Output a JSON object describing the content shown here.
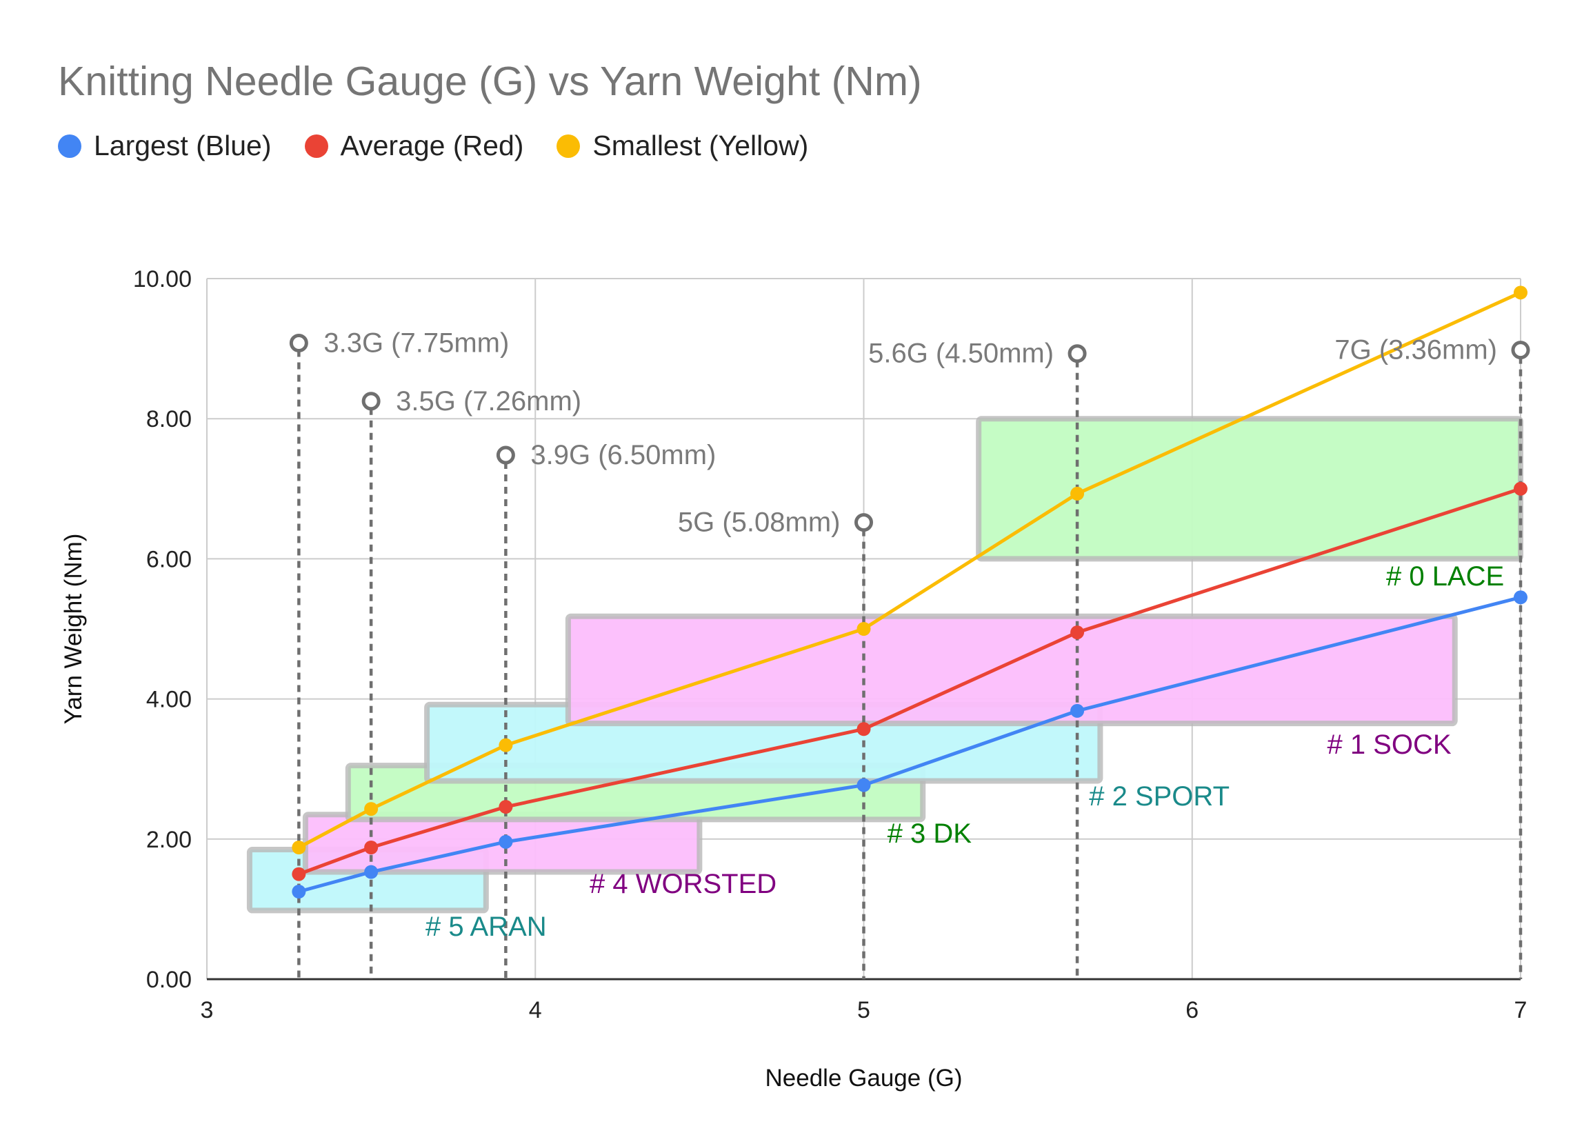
{
  "chart_data": {
    "type": "line",
    "title": "Knitting Needle Gauge (G) vs Yarn Weight (Nm)",
    "xlabel": "Needle Gauge (G)",
    "ylabel": "Yarn Weight (Nm)",
    "xlim": [
      3,
      7
    ],
    "ylim": [
      0,
      10
    ],
    "x_ticks": [
      "3",
      "4",
      "5",
      "6",
      "7"
    ],
    "y_ticks": [
      "0.00",
      "2.00",
      "4.00",
      "6.00",
      "8.00",
      "10.00"
    ],
    "grid": true,
    "legend_position": "top-left",
    "x": [
      3.28,
      3.5,
      3.91,
      5.0,
      5.65,
      7.0
    ],
    "series": [
      {
        "name": "Largest (Blue)",
        "color": "#4285f4",
        "values": [
          1.25,
          1.53,
          1.96,
          2.77,
          3.83,
          5.45
        ]
      },
      {
        "name": "Average (Red)",
        "color": "#ea4335",
        "values": [
          1.5,
          1.88,
          2.46,
          3.57,
          4.95,
          7.0
        ]
      },
      {
        "name": "Smallest (Yellow)",
        "color": "#fbbc04",
        "values": [
          1.88,
          2.43,
          3.34,
          5.0,
          6.93,
          9.8
        ]
      }
    ],
    "needle_markers": [
      {
        "x": 3.28,
        "y": 9.08,
        "label": "3.3G (7.75mm)",
        "side": "right"
      },
      {
        "x": 3.5,
        "y": 8.25,
        "label": "3.5G (7.26mm)",
        "side": "right"
      },
      {
        "x": 3.91,
        "y": 7.48,
        "label": "3.9G (6.50mm)",
        "side": "right"
      },
      {
        "x": 5.0,
        "y": 6.52,
        "label": "5G (5.08mm)",
        "side": "left"
      },
      {
        "x": 5.65,
        "y": 8.93,
        "label": "5.6G (4.50mm)",
        "side": "left"
      },
      {
        "x": 7.0,
        "y": 8.98,
        "label": "7G (3.36mm)",
        "side": "left"
      }
    ],
    "weight_bands": [
      {
        "label": "# 5 ARAN",
        "x0": 3.13,
        "x1": 3.85,
        "y0": 0.98,
        "y1": 1.85,
        "fill": "#bff8fb",
        "text_color": "#1a8a8a",
        "label_x": 3.85,
        "label_y": 0.62,
        "label_anchor": "middle"
      },
      {
        "label": "# 4 WORSTED",
        "x0": 3.3,
        "x1": 4.5,
        "y0": 1.53,
        "y1": 2.35,
        "fill": "#fcbefc",
        "text_color": "#800080",
        "label_x": 4.45,
        "label_y": 1.23,
        "label_anchor": "middle"
      },
      {
        "label": "# 3 DK",
        "x0": 3.43,
        "x1": 5.18,
        "y0": 2.28,
        "y1": 3.05,
        "fill": "#c2fcc2",
        "text_color": "#008000",
        "label_x": 5.2,
        "label_y": 1.95,
        "label_anchor": "middle"
      },
      {
        "label": "# 2 SPORT",
        "x0": 3.67,
        "x1": 5.72,
        "y0": 2.83,
        "y1": 3.92,
        "fill": "#bff8fb",
        "text_color": "#1a8a8a",
        "label_x": 5.9,
        "label_y": 2.48,
        "label_anchor": "middle"
      },
      {
        "label": "# 1 SOCK",
        "x0": 4.1,
        "x1": 6.8,
        "y0": 3.65,
        "y1": 5.18,
        "fill": "#fcbefc",
        "text_color": "#800080",
        "label_x": 6.6,
        "label_y": 3.22,
        "label_anchor": "middle"
      },
      {
        "label": "# 0 LACE",
        "x0": 5.35,
        "x1": 7.0,
        "y0": 6.0,
        "y1": 8.0,
        "fill": "#c2fcc2",
        "text_color": "#008000",
        "label_x": 6.95,
        "label_y": 5.62,
        "label_anchor": "end"
      }
    ]
  }
}
